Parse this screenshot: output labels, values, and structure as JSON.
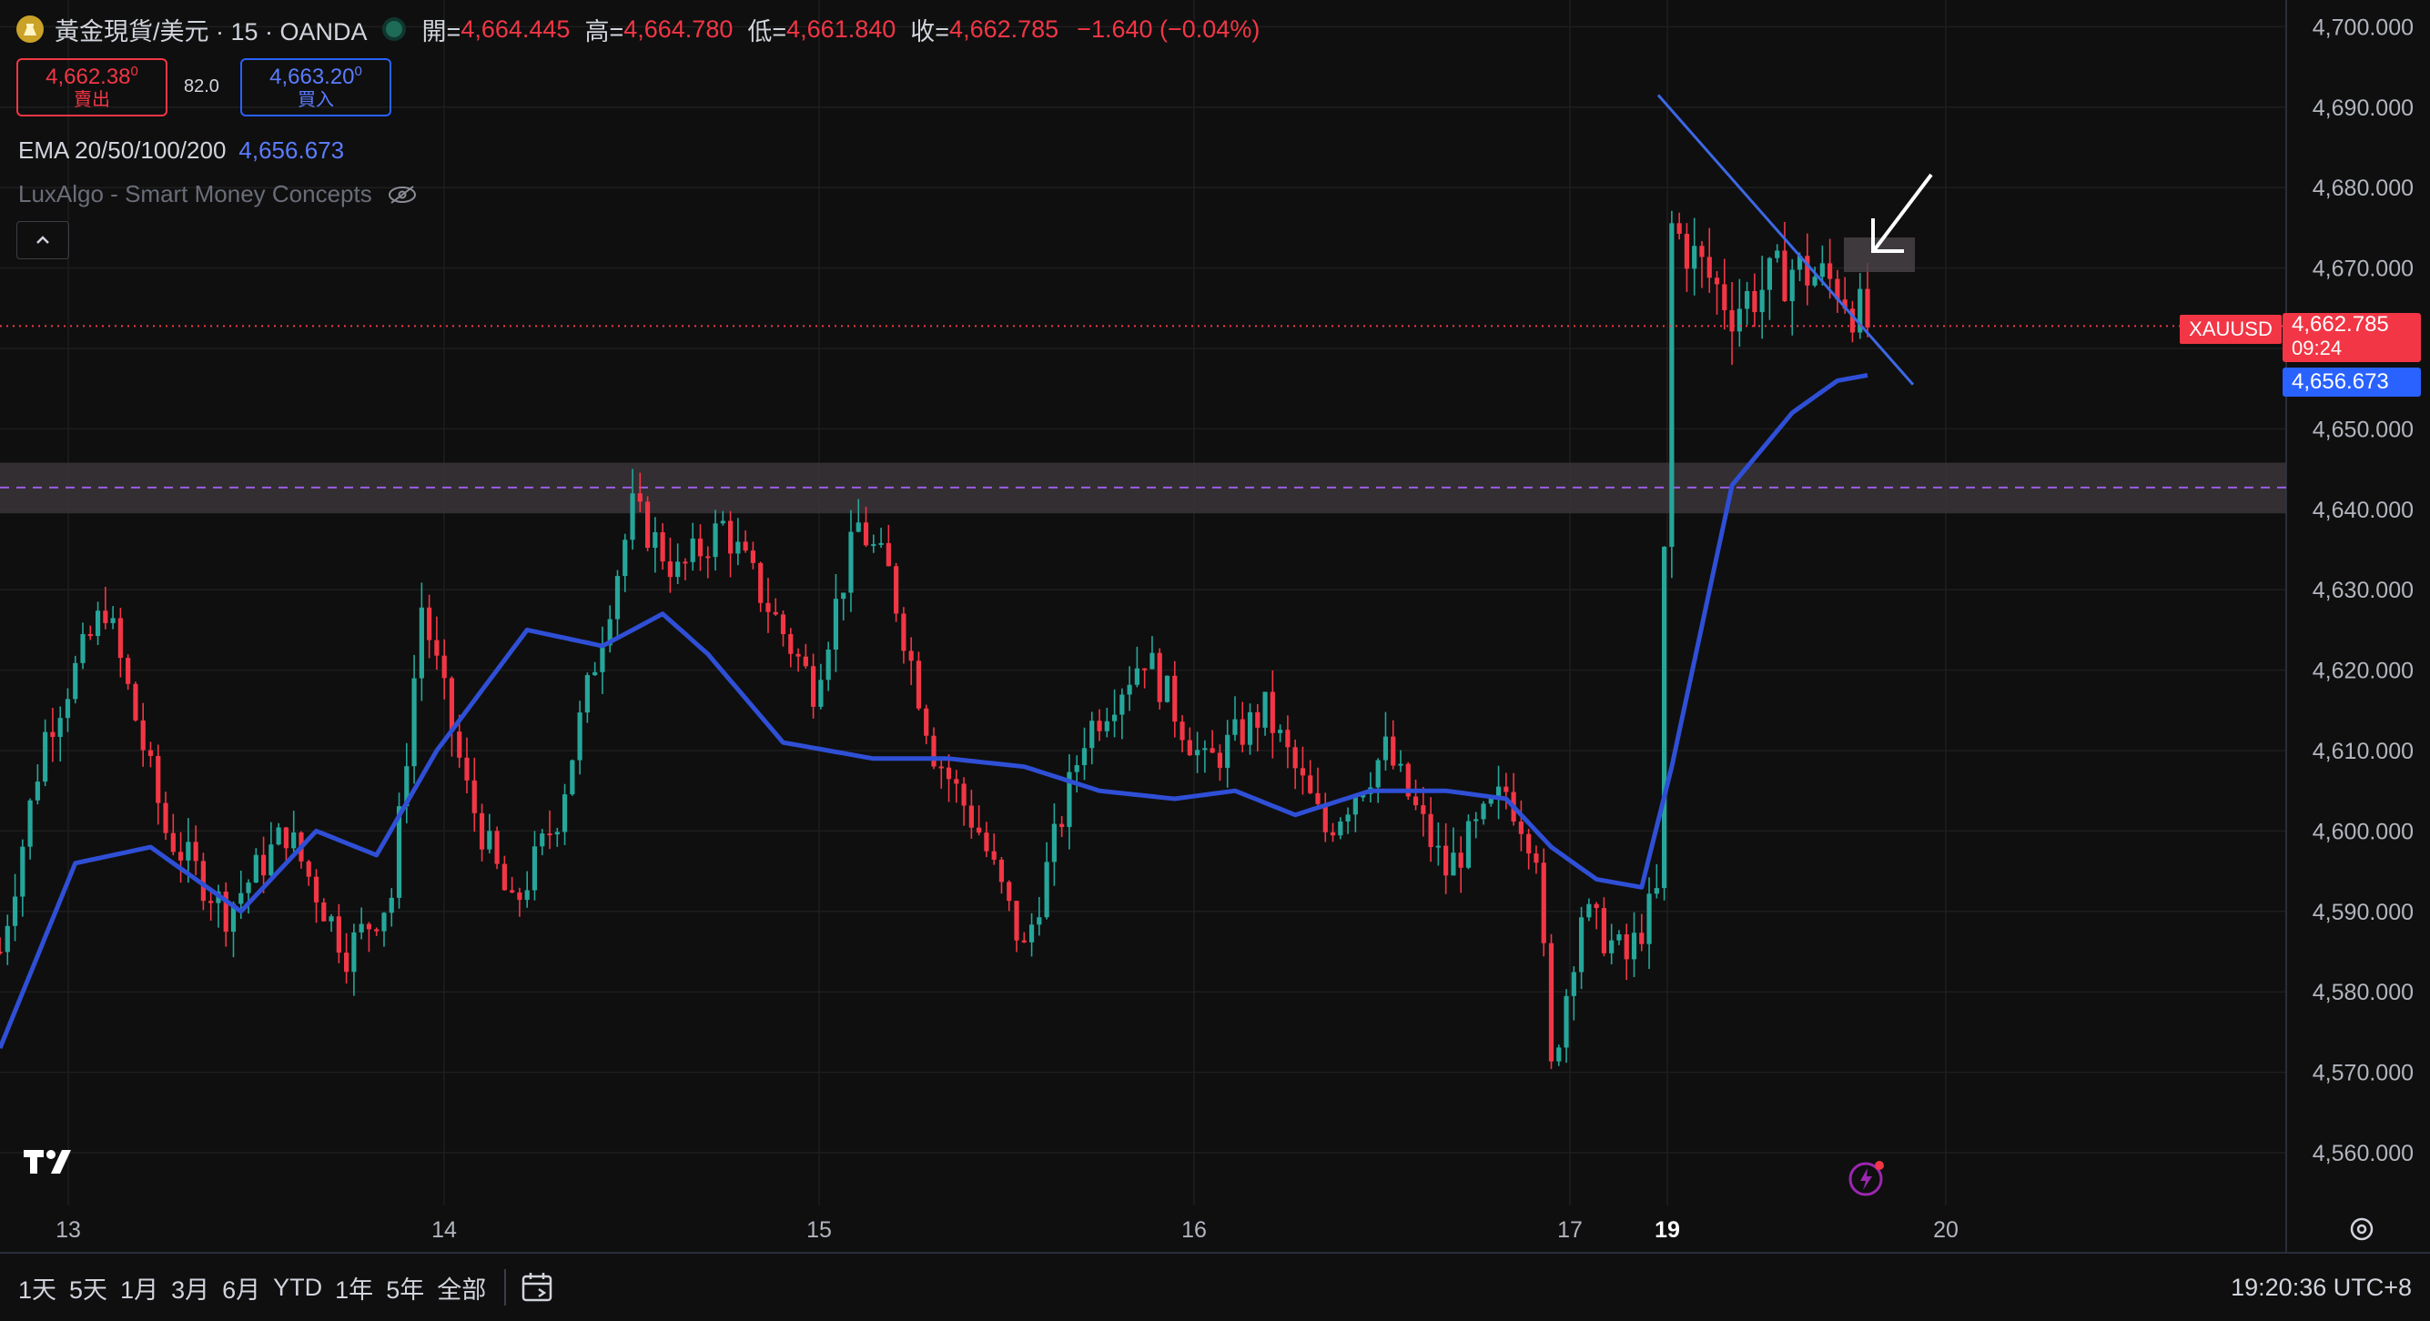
{
  "header": {
    "symbol": "黃金現貨/美元 · 15 · OANDA",
    "open_label": "開=",
    "open": "4,664.445",
    "high_label": "高=",
    "high": "4,664.780",
    "low_label": "低=",
    "low": "4,661.840",
    "close_label": "收=",
    "close": "4,662.785",
    "change": "−1.640 (−0.04%)"
  },
  "trade": {
    "sell_price": "4,662.38",
    "sell_price_sup": "0",
    "sell_label": "賣出",
    "spread": "82.0",
    "buy_price": "4,663.20",
    "buy_price_sup": "0",
    "buy_label": "買入"
  },
  "indicators": {
    "ema_label": "EMA 20/50/100/200",
    "ema_value": "4,656.673",
    "smc_label": "LuxAlgo - Smart Money Concepts"
  },
  "price_axis": {
    "current_price": "4,662.785",
    "countdown": "09:24",
    "ema_price": "4,656.673",
    "symbol_tag": "XAUUSD"
  },
  "time_axis": [
    "13",
    "14",
    "15",
    "16",
    "17",
    "19",
    "20"
  ],
  "bottom_bar": {
    "ranges": [
      "1天",
      "5天",
      "1月",
      "3月",
      "6月",
      "YTD",
      "1年",
      "5年",
      "全部"
    ],
    "clock": "19:20:36 UTC+8"
  },
  "colors": {
    "up": "#26a69a",
    "down": "#f23645",
    "ema": "#2f4fd6",
    "trendline": "#3d68e6",
    "zone": "#3a3438",
    "background": "#0f0f0f"
  },
  "chart_data": {
    "type": "candlestick",
    "title": "",
    "xlabel": "",
    "ylabel": "",
    "ylim": [
      4553,
      4704
    ],
    "yticks": [
      4560,
      4570,
      4580,
      4590,
      4600,
      4610,
      4620,
      4630,
      4640,
      4650,
      4660,
      4670,
      4680,
      4690,
      4700
    ],
    "x_labels": [
      "13",
      "14",
      "15",
      "16",
      "17",
      "19",
      "20"
    ],
    "close_path": [
      [
        0,
        4585
      ],
      [
        6,
        4612
      ],
      [
        14,
        4628
      ],
      [
        22,
        4600
      ],
      [
        30,
        4590
      ],
      [
        38,
        4600
      ],
      [
        46,
        4585
      ],
      [
        52,
        4592
      ],
      [
        56,
        4628
      ],
      [
        62,
        4605
      ],
      [
        68,
        4590
      ],
      [
        74,
        4602
      ],
      [
        80,
        4625
      ],
      [
        84,
        4640
      ],
      [
        90,
        4632
      ],
      [
        96,
        4638
      ],
      [
        102,
        4628
      ],
      [
        108,
        4618
      ],
      [
        114,
        4638
      ],
      [
        118,
        4632
      ],
      [
        124,
        4610
      ],
      [
        130,
        4600
      ],
      [
        136,
        4585
      ],
      [
        144,
        4612
      ],
      [
        152,
        4622
      ],
      [
        160,
        4608
      ],
      [
        168,
        4615
      ],
      [
        176,
        4600
      ],
      [
        184,
        4610
      ],
      [
        192,
        4595
      ],
      [
        200,
        4605
      ],
      [
        204,
        4598
      ],
      [
        206,
        4570
      ],
      [
        210,
        4590
      ],
      [
        216,
        4584
      ],
      [
        220,
        4592
      ],
      [
        222,
        4675
      ],
      [
        230,
        4665
      ],
      [
        238,
        4670
      ],
      [
        244,
        4668
      ],
      [
        248,
        4662.785
      ]
    ],
    "ema_path": [
      [
        0,
        4573
      ],
      [
        10,
        4596
      ],
      [
        20,
        4598
      ],
      [
        32,
        4590
      ],
      [
        42,
        4600
      ],
      [
        50,
        4597
      ],
      [
        58,
        4610
      ],
      [
        70,
        4625
      ],
      [
        80,
        4623
      ],
      [
        88,
        4627
      ],
      [
        94,
        4622
      ],
      [
        104,
        4611
      ],
      [
        116,
        4609
      ],
      [
        126,
        4609
      ],
      [
        136,
        4608
      ],
      [
        146,
        4605
      ],
      [
        156,
        4604
      ],
      [
        164,
        4605
      ],
      [
        172,
        4602
      ],
      [
        182,
        4605
      ],
      [
        192,
        4605
      ],
      [
        200,
        4604
      ],
      [
        206,
        4598
      ],
      [
        212,
        4594
      ],
      [
        218,
        4593
      ],
      [
        222,
        4608
      ],
      [
        230,
        4643
      ],
      [
        238,
        4652
      ],
      [
        244,
        4656
      ],
      [
        248,
        4656.673
      ]
    ],
    "trendline": [
      [
        4691.5,
        0
      ],
      [
        4665,
        1
      ]
    ],
    "zone": [
      4639.5,
      4645.8
    ],
    "zone_mid": 4642.7,
    "current_price": 4662.785,
    "ema": 4656.673
  }
}
